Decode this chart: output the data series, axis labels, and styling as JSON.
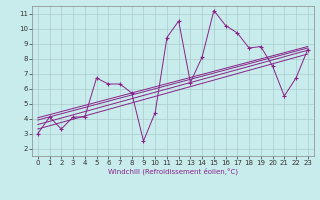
{
  "xlabel": "Windchill (Refroidissement éolien,°C)",
  "bg_color": "#c8ecec",
  "line_color": "#882288",
  "grid_color": "#aacccc",
  "x_data": [
    0,
    1,
    2,
    3,
    4,
    5,
    6,
    7,
    8,
    9,
    10,
    11,
    12,
    13,
    14,
    15,
    16,
    17,
    18,
    19,
    20,
    21,
    22,
    23
  ],
  "y_data": [
    3.0,
    4.1,
    3.3,
    4.1,
    4.1,
    6.7,
    6.3,
    6.3,
    5.7,
    2.5,
    4.4,
    9.4,
    10.5,
    6.4,
    8.1,
    11.2,
    10.2,
    9.7,
    8.7,
    8.8,
    7.5,
    5.5,
    6.7,
    8.6
  ],
  "xlim": [
    -0.5,
    23.5
  ],
  "ylim": [
    1.5,
    11.5
  ],
  "yticks": [
    2,
    3,
    4,
    5,
    6,
    7,
    8,
    9,
    10,
    11
  ],
  "xticks": [
    0,
    1,
    2,
    3,
    4,
    5,
    6,
    7,
    8,
    9,
    10,
    11,
    12,
    13,
    14,
    15,
    16,
    17,
    18,
    19,
    20,
    21,
    22,
    23
  ],
  "regression_lines": [
    {
      "x_start": 0,
      "y_start": 3.3,
      "x_end": 23,
      "y_end": 8.3
    },
    {
      "x_start": 0,
      "y_start": 3.6,
      "x_end": 23,
      "y_end": 8.55
    },
    {
      "x_start": 0,
      "y_start": 3.9,
      "x_end": 23,
      "y_end": 8.7
    },
    {
      "x_start": 0,
      "y_start": 4.05,
      "x_end": 23,
      "y_end": 8.8
    }
  ],
  "tick_fontsize": 5,
  "xlabel_fontsize": 5,
  "xlabel_color": "#882288"
}
